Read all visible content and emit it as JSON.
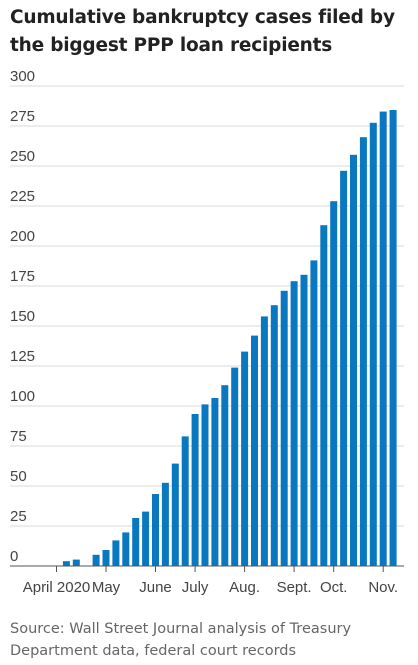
{
  "chart_data": {
    "type": "bar",
    "title": "Cumulative bankruptcy cases filed by the biggest PPP loan recipients",
    "xlabel": "",
    "ylabel": "",
    "ylim": [
      0,
      300
    ],
    "grid": true,
    "y_ticks": [
      "0",
      "25",
      "50",
      "75",
      "100",
      "125",
      "150",
      "175",
      "200",
      "225",
      "250",
      "275",
      "300"
    ],
    "x_ticks": [
      {
        "label": "April 2020",
        "at": 0
      },
      {
        "label": "May",
        "at": 5
      },
      {
        "label": "June",
        "at": 10
      },
      {
        "label": "July",
        "at": 14
      },
      {
        "label": "Aug.",
        "at": 19
      },
      {
        "label": "Sept.",
        "at": 24
      },
      {
        "label": "Oct.",
        "at": 28
      },
      {
        "label": "Nov.",
        "at": 33
      }
    ],
    "values": [
      0,
      3,
      4,
      0,
      7,
      10,
      16,
      21,
      30,
      34,
      45,
      52,
      64,
      81,
      95,
      101,
      105,
      113,
      124,
      134,
      144,
      156,
      163,
      172,
      178,
      182,
      191,
      213,
      228,
      247,
      257,
      268,
      277,
      284,
      285
    ],
    "bar_color": "#0a78c0"
  },
  "source": "Source: Wall Street Journal analysis of Treasury Department data, federal court records"
}
